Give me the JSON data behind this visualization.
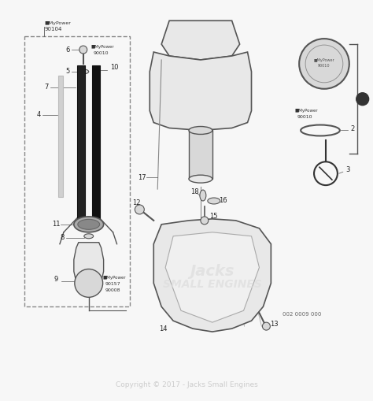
{
  "bg_color": "#f7f7f7",
  "copyright_text": "Copyright © 2017 - Jacks Small Engines",
  "copyright_color": "#cccccc",
  "part_number_ref": "002 0009 000",
  "watermark_line1": "Jacks",
  "watermark_line2": "SMALL ENGINES",
  "label_color": "#222222",
  "line_color": "#555555",
  "part_outline_color": "#555555",
  "dashed_line_color": "#888888",
  "part_fill": "#e8e8e8",
  "part_fill2": "#d8d8d8"
}
